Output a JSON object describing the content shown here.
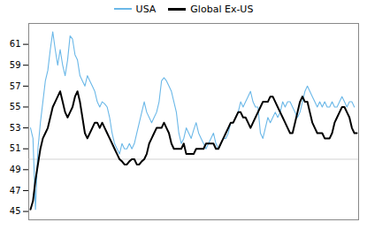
{
  "chart_data": {
    "type": "line",
    "series": [
      {
        "name": "USA",
        "color": "#6BB8E8",
        "values": [
          53.0,
          52.0,
          45.2,
          51.0,
          53.5,
          55.5,
          57.5,
          58.5,
          60.5,
          62.2,
          60.5,
          59.0,
          60.5,
          59.0,
          58.0,
          59.5,
          61.8,
          61.5,
          60.0,
          59.5,
          58.0,
          57.5,
          57.0,
          58.0,
          57.5,
          57.0,
          56.5,
          55.5,
          55.0,
          55.5,
          55.3,
          55.0,
          54.0,
          52.5,
          51.5,
          51.0,
          50.5,
          51.5,
          51.0,
          51.0,
          51.5,
          51.0,
          51.5,
          52.5,
          53.5,
          54.5,
          55.5,
          54.5,
          54.0,
          53.5,
          54.0,
          54.5,
          55.5,
          57.5,
          57.8,
          57.5,
          57.0,
          56.5,
          55.5,
          54.5,
          52.5,
          51.5,
          52.0,
          53.0,
          52.5,
          52.0,
          52.8,
          53.5,
          52.5,
          52.0,
          51.5,
          51.0,
          51.5,
          52.0,
          52.5,
          51.5,
          51.0,
          51.5,
          52.0,
          52.0,
          52.5,
          53.5,
          53.5,
          54.0,
          54.5,
          55.5,
          55.0,
          55.5,
          56.0,
          56.5,
          55.5,
          55.0,
          55.0,
          52.5,
          52.0,
          53.0,
          54.0,
          53.5,
          54.0,
          54.5,
          54.0,
          54.5,
          55.5,
          55.0,
          55.5,
          55.5,
          55.0,
          54.5,
          54.0,
          54.5,
          55.5,
          56.5,
          57.0,
          56.5,
          56.0,
          55.5,
          55.0,
          55.5,
          55.0,
          55.5,
          55.0,
          55.0,
          55.5,
          55.0,
          55.0,
          55.5,
          56.0,
          55.5,
          55.0,
          55.5,
          55.5,
          55.0
        ]
      },
      {
        "name": "Global Ex-US",
        "color": "#000000",
        "values": [
          45.2,
          46.0,
          48.0,
          49.5,
          51.0,
          52.0,
          52.5,
          53.0,
          54.0,
          55.0,
          55.5,
          56.0,
          56.5,
          55.5,
          54.5,
          54.0,
          54.5,
          55.0,
          56.0,
          56.5,
          55.5,
          54.0,
          52.5,
          52.0,
          52.5,
          53.0,
          53.5,
          53.5,
          53.0,
          53.5,
          53.0,
          52.5,
          52.0,
          51.5,
          51.0,
          50.5,
          50.0,
          49.8,
          49.5,
          49.5,
          49.8,
          50.0,
          50.0,
          49.5,
          49.5,
          49.8,
          50.0,
          50.5,
          51.5,
          52.0,
          52.5,
          53.0,
          53.0,
          53.0,
          53.5,
          53.0,
          52.5,
          51.5,
          51.0,
          51.0,
          51.0,
          51.0,
          51.5,
          50.5,
          50.5,
          50.5,
          50.5,
          51.0,
          51.0,
          51.0,
          51.0,
          51.5,
          51.5,
          51.5,
          51.5,
          51.0,
          51.0,
          51.5,
          52.0,
          52.5,
          53.0,
          53.5,
          53.5,
          54.0,
          54.5,
          54.5,
          54.0,
          54.0,
          53.5,
          53.0,
          53.5,
          54.0,
          54.5,
          55.0,
          55.5,
          55.5,
          55.5,
          56.0,
          56.0,
          55.5,
          55.0,
          54.5,
          54.0,
          53.5,
          53.0,
          52.5,
          52.5,
          53.5,
          54.5,
          55.5,
          56.0,
          55.5,
          55.5,
          54.5,
          53.5,
          53.0,
          52.5,
          52.5,
          52.5,
          52.0,
          52.0,
          52.0,
          52.5,
          53.5,
          54.0,
          54.5,
          55.0,
          55.0,
          54.5,
          54.0,
          53.0,
          52.5,
          52.5
        ]
      }
    ],
    "ylim": [
      44.2,
      63.0
    ],
    "yticks": [
      45,
      47,
      49,
      51,
      53,
      55,
      57,
      59,
      61
    ],
    "hline": 50.0,
    "grid": false,
    "legend": "top",
    "tick_labels": "y"
  }
}
